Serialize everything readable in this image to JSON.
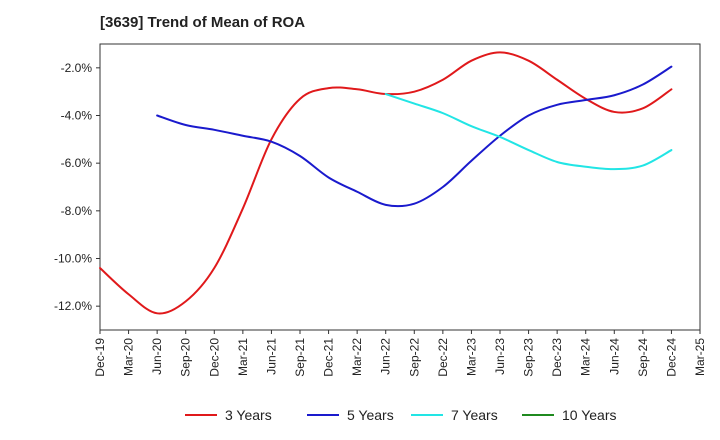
{
  "chart_data": {
    "type": "line",
    "title": "[3639]  Trend of Mean of ROA",
    "xlabel": "",
    "ylabel": "",
    "x_ticks": [
      "Dec-19",
      "Mar-20",
      "Jun-20",
      "Sep-20",
      "Dec-20",
      "Mar-21",
      "Jun-21",
      "Sep-21",
      "Dec-21",
      "Mar-22",
      "Jun-22",
      "Sep-22",
      "Dec-22",
      "Mar-23",
      "Jun-23",
      "Sep-23",
      "Dec-23",
      "Mar-24",
      "Jun-24",
      "Sep-24",
      "Dec-24",
      "Mar-25"
    ],
    "y_ticks": [
      -2,
      -4,
      -6,
      -8,
      -10,
      -12
    ],
    "y_tick_labels": [
      "-2.0%",
      "-4.0%",
      "-6.0%",
      "-8.0%",
      "-10.0%",
      "-12.0%"
    ],
    "ylim": [
      -13.0,
      -1.0
    ],
    "grid": true,
    "legend_position": "bottom",
    "series": [
      {
        "name": "3 Years",
        "color": "#e0191b",
        "points": [
          [
            "Dec-19",
            -10.4
          ],
          [
            "Mar-20",
            -11.5
          ],
          [
            "Jun-20",
            -12.3
          ],
          [
            "Sep-20",
            -11.8
          ],
          [
            "Dec-20",
            -10.4
          ],
          [
            "Mar-21",
            -7.9
          ],
          [
            "Jun-21",
            -5.0
          ],
          [
            "Sep-21",
            -3.3
          ],
          [
            "Dec-21",
            -2.85
          ],
          [
            "Mar-22",
            -2.9
          ],
          [
            "Jun-22",
            -3.1
          ],
          [
            "Sep-22",
            -3.0
          ],
          [
            "Dec-22",
            -2.5
          ],
          [
            "Mar-23",
            -1.7
          ],
          [
            "Jun-23",
            -1.35
          ],
          [
            "Sep-23",
            -1.7
          ],
          [
            "Dec-23",
            -2.5
          ],
          [
            "Mar-24",
            -3.3
          ],
          [
            "Jun-24",
            -3.85
          ],
          [
            "Sep-24",
            -3.7
          ],
          [
            "Dec-24",
            -2.9
          ]
        ]
      },
      {
        "name": "5 Years",
        "color": "#1a1acd",
        "points": [
          [
            "Jun-20",
            -4.0
          ],
          [
            "Sep-20",
            -4.4
          ],
          [
            "Dec-20",
            -4.6
          ],
          [
            "Mar-21",
            -4.85
          ],
          [
            "Jun-21",
            -5.1
          ],
          [
            "Sep-21",
            -5.7
          ],
          [
            "Dec-21",
            -6.6
          ],
          [
            "Mar-22",
            -7.2
          ],
          [
            "Jun-22",
            -7.75
          ],
          [
            "Sep-22",
            -7.7
          ],
          [
            "Dec-22",
            -7.0
          ],
          [
            "Mar-23",
            -5.9
          ],
          [
            "Jun-23",
            -4.85
          ],
          [
            "Sep-23",
            -4.0
          ],
          [
            "Dec-23",
            -3.55
          ],
          [
            "Mar-24",
            -3.35
          ],
          [
            "Jun-24",
            -3.15
          ],
          [
            "Sep-24",
            -2.7
          ],
          [
            "Dec-24",
            -1.95
          ]
        ]
      },
      {
        "name": "7 Years",
        "color": "#22e5e5",
        "points": [
          [
            "Jun-22",
            -3.1
          ],
          [
            "Sep-22",
            -3.5
          ],
          [
            "Dec-22",
            -3.9
          ],
          [
            "Mar-23",
            -4.45
          ],
          [
            "Jun-23",
            -4.9
          ],
          [
            "Sep-23",
            -5.45
          ],
          [
            "Dec-23",
            -5.95
          ],
          [
            "Mar-24",
            -6.15
          ],
          [
            "Jun-24",
            -6.25
          ],
          [
            "Sep-24",
            -6.1
          ],
          [
            "Dec-24",
            -5.45
          ]
        ]
      },
      {
        "name": "10 Years",
        "color": "#1f8a1f",
        "points": []
      }
    ]
  }
}
